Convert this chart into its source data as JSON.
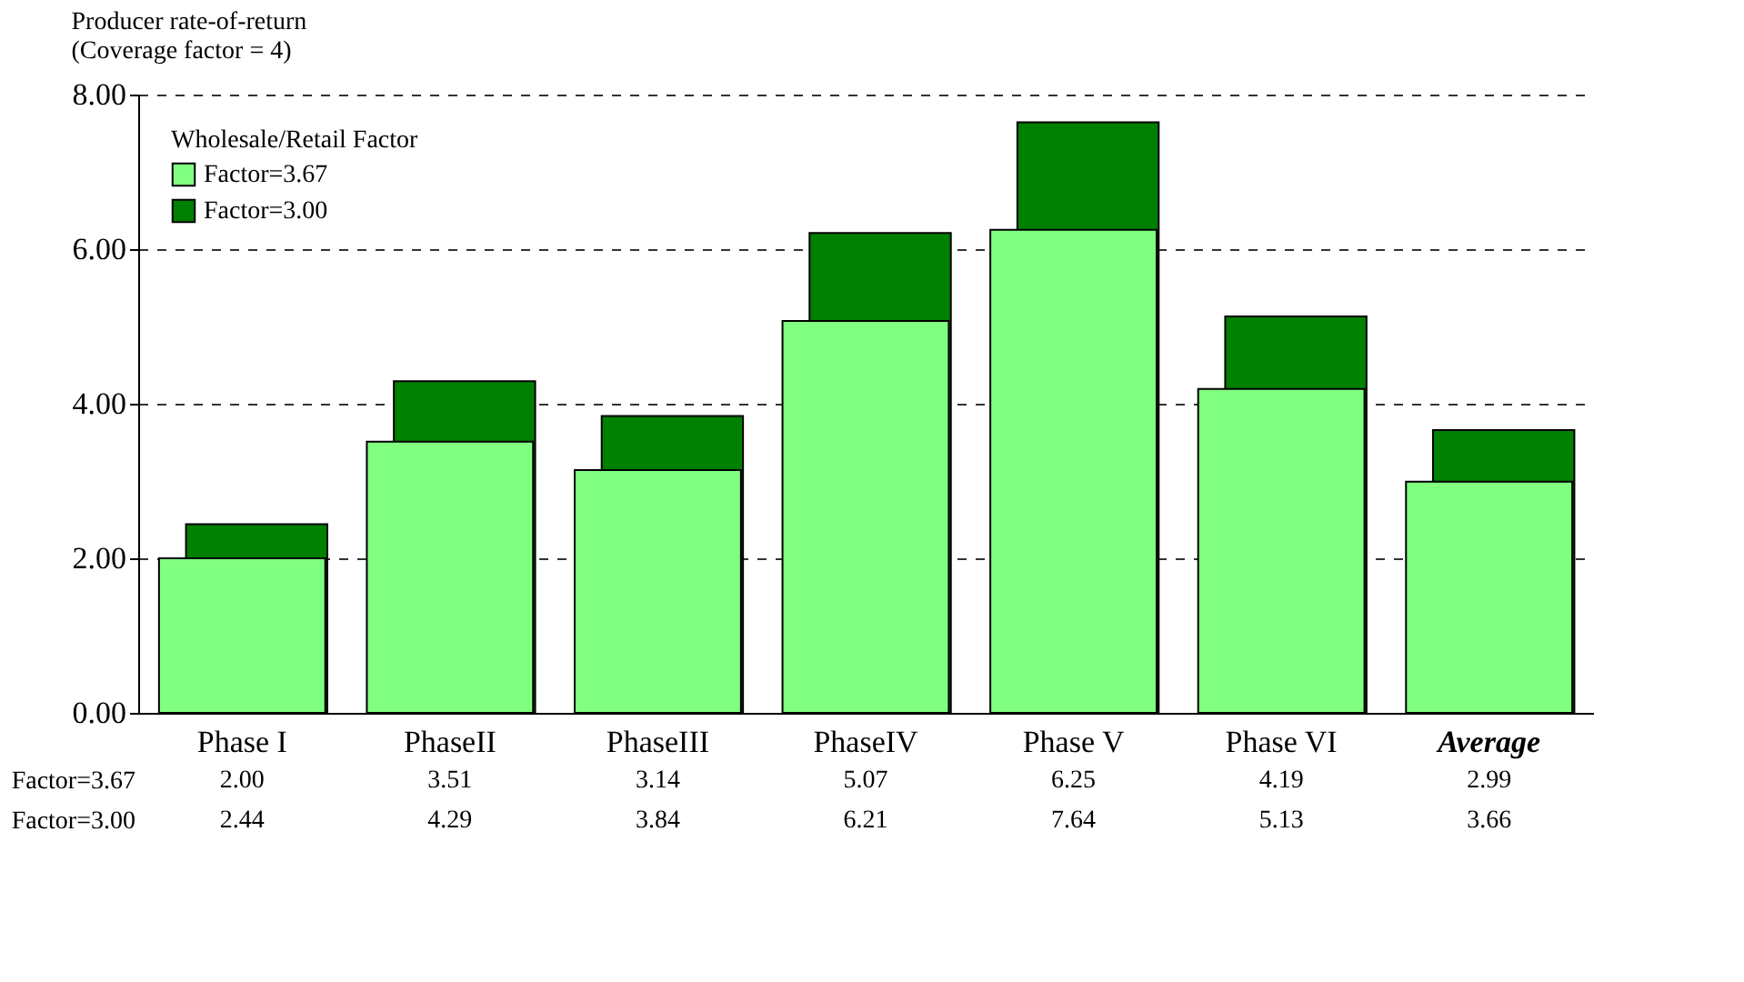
{
  "chart_data": {
    "type": "bar",
    "title": "Producer rate-of-return",
    "subtitle": "(Coverage factor = 4)",
    "legend_title": "Wholesale/Retail Factor",
    "categories": [
      "Phase I",
      "PhaseII",
      "PhaseIII",
      "PhaseIV",
      "Phase V",
      "Phase VI",
      "Average"
    ],
    "series": [
      {
        "name": "Factor=3.67",
        "color": "#80ff80",
        "values": [
          2.0,
          3.51,
          3.14,
          5.07,
          6.25,
          4.19,
          2.99
        ],
        "value_labels": [
          "2.00",
          "3.51",
          "3.14",
          "5.07",
          "6.25",
          "4.19",
          "2.99"
        ]
      },
      {
        "name": "Factor=3.00",
        "color": "#008000",
        "values": [
          2.44,
          4.29,
          3.84,
          6.21,
          7.64,
          5.13,
          3.66
        ],
        "value_labels": [
          "2.44",
          "4.29",
          "3.84",
          "6.21",
          "7.64",
          "5.13",
          "3.66"
        ]
      }
    ],
    "ylim": [
      0,
      8
    ],
    "yticks": [
      {
        "value": 0,
        "label": "0.00"
      },
      {
        "value": 2,
        "label": "2.00"
      },
      {
        "value": 4,
        "label": "4.00"
      },
      {
        "value": 6,
        "label": "6.00"
      },
      {
        "value": 8,
        "label": "8.00"
      }
    ],
    "grid": "y",
    "legend": "top left"
  }
}
